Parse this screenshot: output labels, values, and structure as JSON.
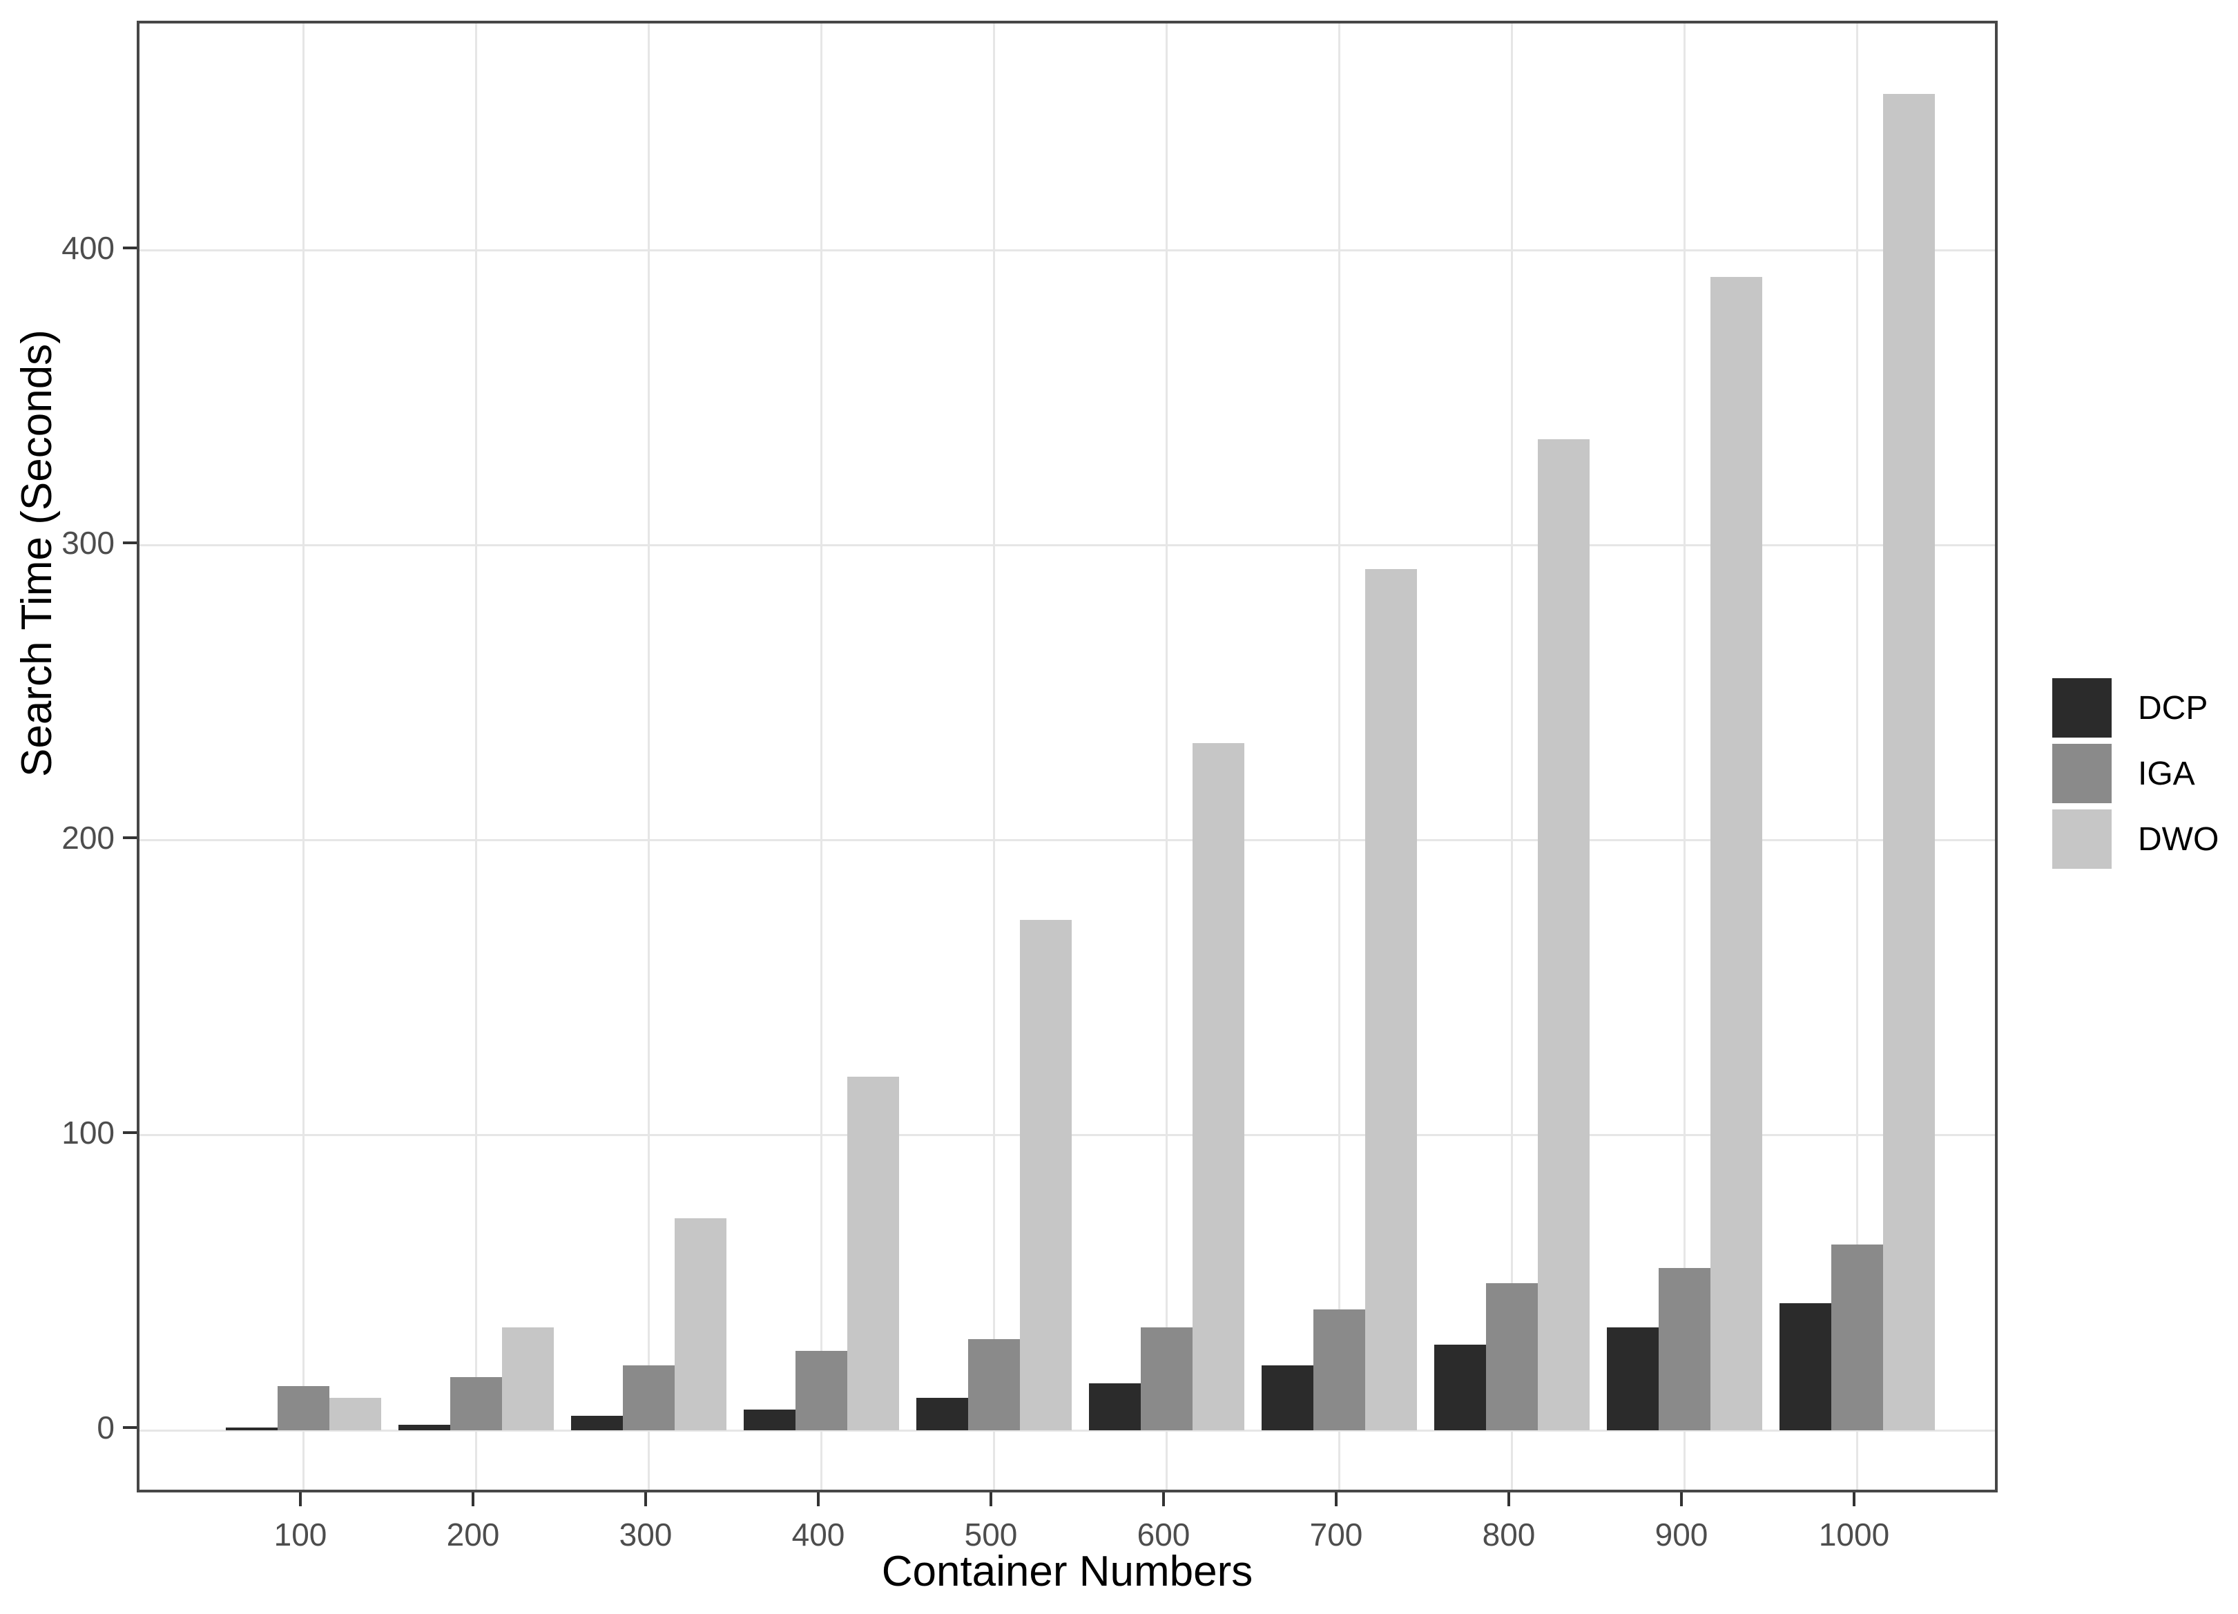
{
  "chart_data": {
    "type": "bar",
    "title": "",
    "xlabel": "Container Numbers",
    "ylabel": "Search Time (Seconds)",
    "categories": [
      "100",
      "200",
      "300",
      "400",
      "500",
      "600",
      "700",
      "800",
      "900",
      "1000"
    ],
    "series": [
      {
        "name": "DCP",
        "color": "#2b2b2b",
        "values": [
          1,
          2,
          5,
          7,
          11,
          16,
          22,
          29,
          35,
          43
        ]
      },
      {
        "name": "IGA",
        "color": "#8a8a8a",
        "values": [
          15,
          18,
          22,
          27,
          31,
          35,
          41,
          50,
          55,
          63
        ]
      },
      {
        "name": "DWO",
        "color": "#c6c6c6",
        "values": [
          11,
          35,
          72,
          120,
          173,
          233,
          292,
          336,
          391,
          453
        ]
      }
    ],
    "y_ticks": [
      0,
      100,
      200,
      300,
      400
    ],
    "ylim": [
      -22,
      477
    ],
    "grid": true,
    "legend_position": "right",
    "colors": {
      "grid": "#e6e6e6",
      "panel_border": "#474747",
      "tick_mark": "#333333",
      "tick_label": "#4d4d4d",
      "axis_title": "#000000",
      "background": "#ffffff"
    }
  }
}
